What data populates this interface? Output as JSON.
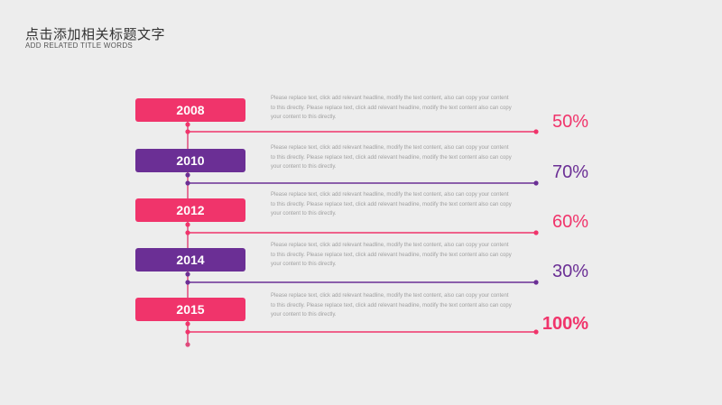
{
  "header": {
    "title": "点击添加相关标题文字",
    "subtitle": "ADD RELATED TITLE WORDS"
  },
  "colors": {
    "pink": "#f0346b",
    "purple": "#6b2f95",
    "line": "#e04a7c"
  },
  "items": [
    {
      "year": "2008",
      "color": "#f0346b",
      "desc": "Please replace text, click add relevant headline, modify the text content, also can copy your content to this directly. Please replace text, click add relevant headline, modify the text content also can copy your content to this directly.",
      "percent": "50%"
    },
    {
      "year": "2010",
      "color": "#6b2f95",
      "desc": "Please replace text, click add relevant headline, modify the text content, also can copy your content to this directly. Please replace text, click add relevant headline, modify the text content also can copy your content to this directly.",
      "percent": "70%"
    },
    {
      "year": "2012",
      "color": "#f0346b",
      "desc": "Please replace text, click add relevant headline, modify the text content, also can copy your content to this directly. Please replace text, click add relevant headline, modify the text content also can copy your content to this directly.",
      "percent": "60%"
    },
    {
      "year": "2014",
      "color": "#6b2f95",
      "desc": "Please replace text, click add relevant headline, modify the text content, also can copy your content to this directly. Please replace text, click add relevant headline, modify the text content also can copy your content to this directly.",
      "percent": "30%"
    },
    {
      "year": "2015",
      "color": "#f0346b",
      "desc": "Please replace text, click add relevant headline, modify the text content, also can copy your content to this directly. Please replace text, click add relevant headline, modify the text content also can copy your content to this directly.",
      "percent": "100%"
    }
  ]
}
